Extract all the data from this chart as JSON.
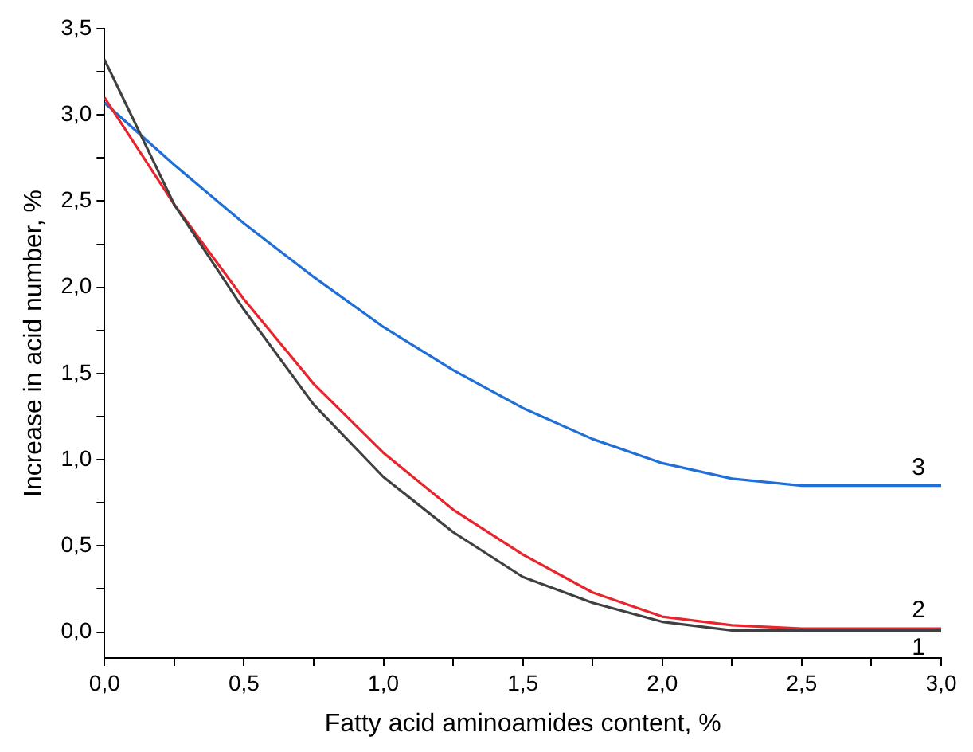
{
  "chart_data": {
    "type": "line",
    "xlabel": "Fatty acid aminoamides content, %",
    "ylabel": "Increase in acid number, %",
    "x": [
      0,
      0.25,
      0.5,
      0.75,
      1,
      1.25,
      1.5,
      1.75,
      2,
      2.25,
      2.5,
      2.75,
      3
    ],
    "series": [
      {
        "name": "1",
        "color": "#404040",
        "values": [
          3.32,
          2.48,
          1.87,
          1.32,
          0.9,
          0.58,
          0.32,
          0.17,
          0.06,
          0.01,
          0.01,
          0.01,
          0.01
        ]
      },
      {
        "name": "2",
        "color": "#e8242c",
        "values": [
          3.1,
          2.48,
          1.93,
          1.44,
          1.04,
          0.71,
          0.45,
          0.23,
          0.09,
          0.04,
          0.02,
          0.02,
          0.02
        ]
      },
      {
        "name": "3",
        "color": "#1f6fd6",
        "values": [
          3.07,
          2.71,
          2.37,
          2.06,
          1.77,
          1.52,
          1.3,
          1.12,
          0.98,
          0.89,
          0.85,
          0.85,
          0.85
        ]
      }
    ],
    "xlim": [
      0,
      3
    ],
    "xticks": [
      {
        "value": 0,
        "label": "0,0"
      },
      {
        "value": 0.25,
        "label": null
      },
      {
        "value": 0.5,
        "label": "0,5"
      },
      {
        "value": 0.75,
        "label": null
      },
      {
        "value": 1,
        "label": "1,0"
      },
      {
        "value": 1.25,
        "label": null
      },
      {
        "value": 1.5,
        "label": "1,5"
      },
      {
        "value": 1.75,
        "label": null
      },
      {
        "value": 2,
        "label": "2,0"
      },
      {
        "value": 2.25,
        "label": null
      },
      {
        "value": 2.5,
        "label": "2,5"
      },
      {
        "value": 2.75,
        "label": null
      },
      {
        "value": 3,
        "label": "3,0"
      }
    ],
    "ylim": [
      -0.15,
      3.5
    ],
    "yticks": [
      {
        "value": 0,
        "label": "0,0"
      },
      {
        "value": 0.25,
        "label": null
      },
      {
        "value": 0.5,
        "label": "0,5"
      },
      {
        "value": 0.75,
        "label": null
      },
      {
        "value": 1,
        "label": "1,0"
      },
      {
        "value": 1.25,
        "label": null
      },
      {
        "value": 1.5,
        "label": "1,5"
      },
      {
        "value": 1.75,
        "label": null
      },
      {
        "value": 2,
        "label": "2,0"
      },
      {
        "value": 2.25,
        "label": null
      },
      {
        "value": 2.5,
        "label": "2,5"
      },
      {
        "value": 2.75,
        "label": null
      },
      {
        "value": 3,
        "label": "3,0"
      },
      {
        "value": 3.25,
        "label": null
      },
      {
        "value": 3.5,
        "label": "3,5"
      }
    ],
    "grid": false,
    "legend": false,
    "marker": "none",
    "line_style": "solid"
  }
}
